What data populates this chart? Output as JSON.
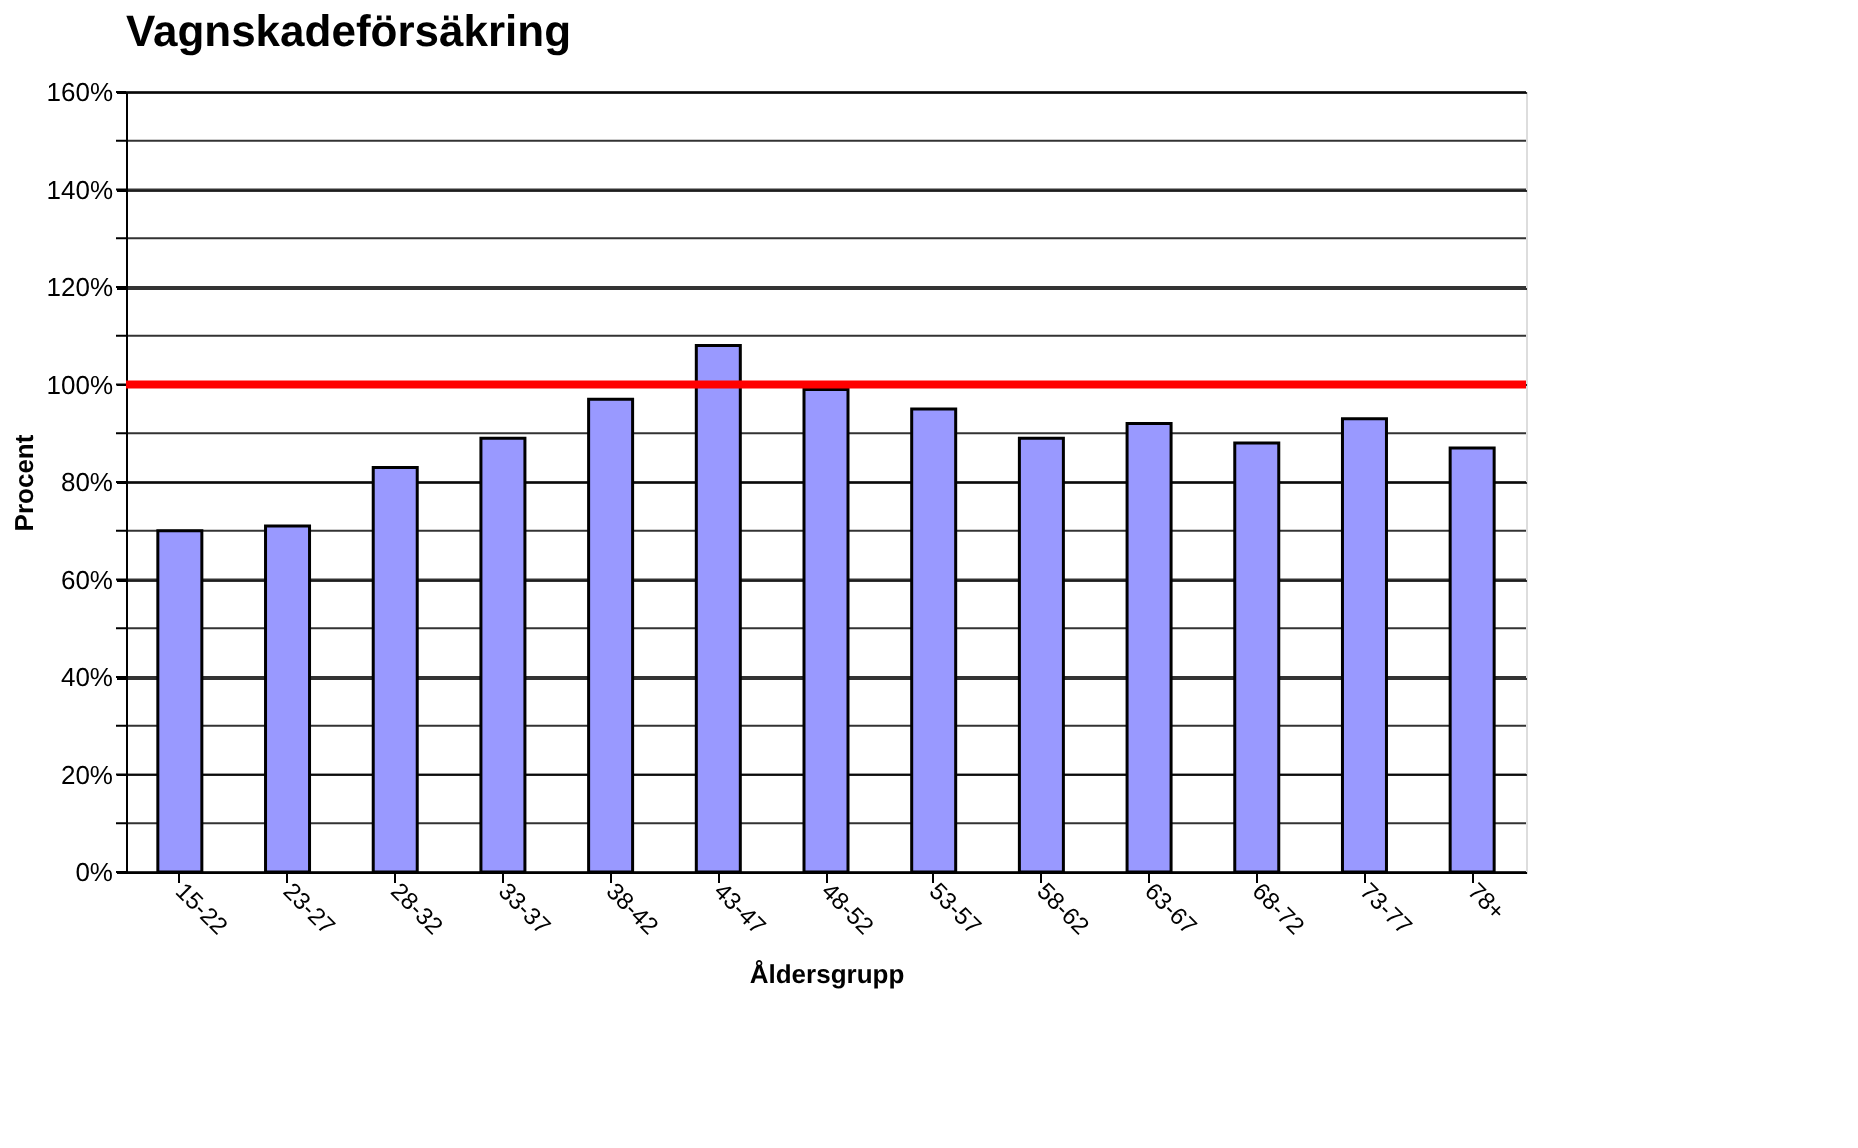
{
  "chart_data": {
    "type": "bar",
    "title": "Vagnskadeförsäkring",
    "xlabel": "Åldersgrupp",
    "ylabel": "Procent",
    "categories": [
      "15-22",
      "23-27",
      "28-32",
      "33-37",
      "38-42",
      "43-47",
      "48-52",
      "53-57",
      "58-62",
      "63-67",
      "68-72",
      "73-77",
      "78+"
    ],
    "series": [
      {
        "color": "#9999ff",
        "values": [
          70,
          71,
          83,
          89,
          97,
          108,
          99,
          95,
          89,
          92,
          88,
          93,
          87
        ]
      }
    ],
    "ylim": [
      0,
      160
    ],
    "yticks": [
      {
        "value": 0,
        "label": "0%"
      },
      {
        "value": 10,
        "label": null
      },
      {
        "value": 20,
        "label": "20%"
      },
      {
        "value": 30,
        "label": null
      },
      {
        "value": 40,
        "label": "40%"
      },
      {
        "value": 50,
        "label": null
      },
      {
        "value": 60,
        "label": "60%"
      },
      {
        "value": 70,
        "label": null
      },
      {
        "value": 80,
        "label": "80%"
      },
      {
        "value": 90,
        "label": null
      },
      {
        "value": 100,
        "label": "100%"
      },
      {
        "value": 110,
        "label": null
      },
      {
        "value": 120,
        "label": "120%"
      },
      {
        "value": 130,
        "label": null
      },
      {
        "value": 140,
        "label": "140%"
      },
      {
        "value": 150,
        "label": null
      },
      {
        "value": 160,
        "label": "160%"
      }
    ],
    "ref_lines": [
      {
        "axis": "y",
        "value": 100,
        "color": "#ff0000"
      }
    ],
    "grid": "y"
  }
}
